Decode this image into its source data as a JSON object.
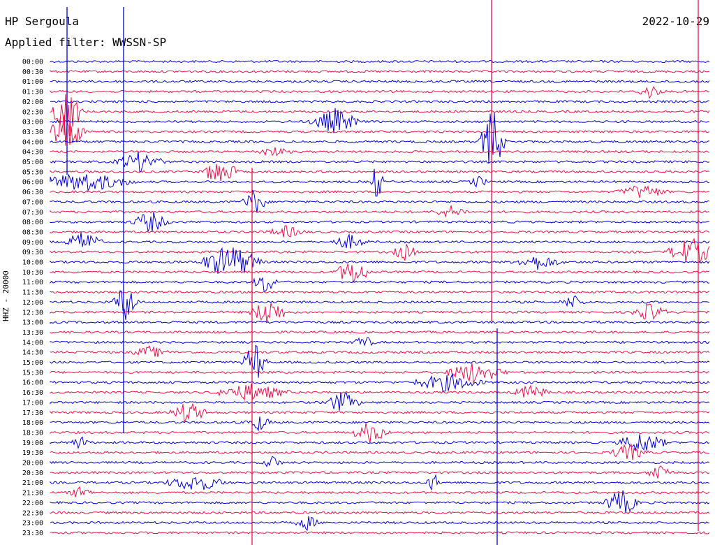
{
  "header": {
    "station": "HP Sergoula",
    "filter": "Applied filter: WWSSN-SP",
    "date": "2022-10-29"
  },
  "axis": {
    "channel_label": "HHZ - 20000"
  },
  "chart_data": {
    "type": "line",
    "title": "HP Sergoula",
    "subtitle": "Applied filter: WWSSN-SP",
    "ylabel": "HHZ - 20000",
    "time_labels": [
      "00:00",
      "00:30",
      "01:00",
      "01:30",
      "02:00",
      "02:30",
      "03:00",
      "03:30",
      "04:00",
      "04:30",
      "05:00",
      "05:30",
      "06:00",
      "06:30",
      "07:00",
      "07:30",
      "08:00",
      "08:30",
      "09:00",
      "09:30",
      "10:00",
      "10:30",
      "11:00",
      "11:30",
      "12:00",
      "12:30",
      "13:00",
      "13:30",
      "14:00",
      "14:30",
      "15:00",
      "15:30",
      "16:00",
      "16:30",
      "17:00",
      "17:30",
      "18:00",
      "18:30",
      "19:00",
      "19:30",
      "20:00",
      "20:30",
      "21:00",
      "21:30",
      "22:00",
      "22:30",
      "23:00",
      "23:30"
    ],
    "trace_colors": [
      "#0000dd",
      "#ee1144"
    ],
    "grid": false
  }
}
